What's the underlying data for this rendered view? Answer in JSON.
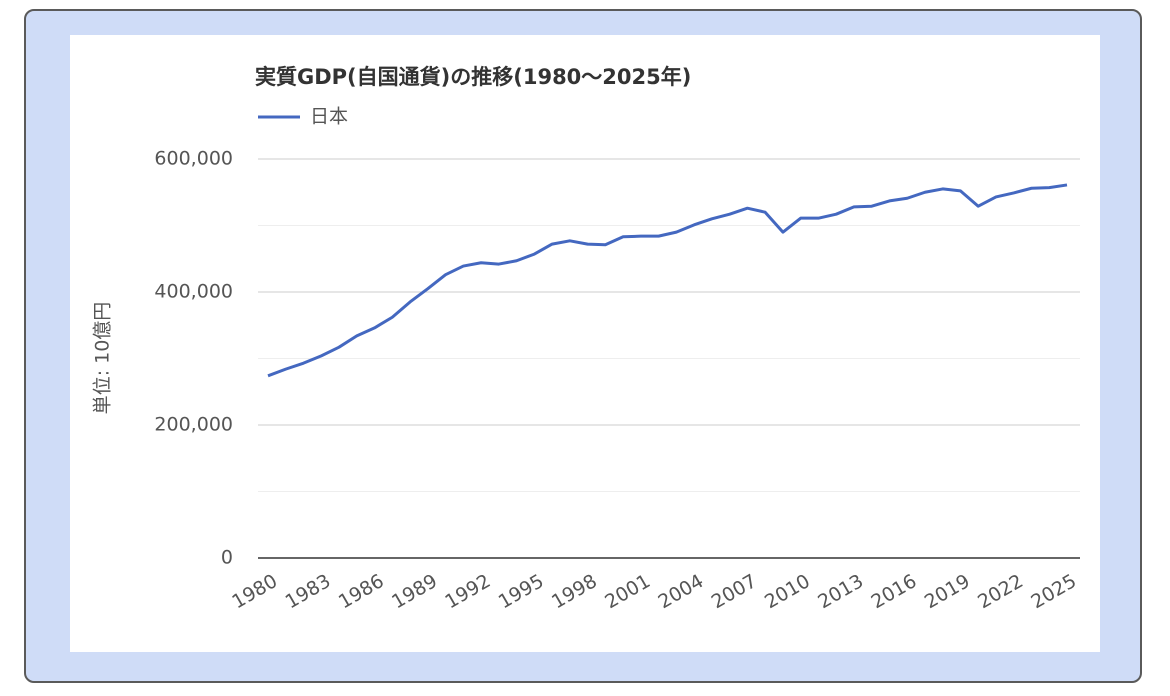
{
  "chart_data": {
    "type": "line",
    "title": "実質GDP(自国通貨)の推移(1980〜2025年)",
    "y_label": "単位: 10億円",
    "x": [
      1980,
      1981,
      1982,
      1983,
      1984,
      1985,
      1986,
      1987,
      1988,
      1989,
      1990,
      1991,
      1992,
      1993,
      1994,
      1995,
      1996,
      1997,
      1998,
      1999,
      2000,
      2001,
      2002,
      2003,
      2004,
      2005,
      2006,
      2007,
      2008,
      2009,
      2010,
      2011,
      2012,
      2013,
      2014,
      2015,
      2016,
      2017,
      2018,
      2019,
      2020,
      2021,
      2022,
      2023,
      2024,
      2025
    ],
    "series": [
      {
        "name": "日本",
        "color": "#4468c0",
        "values": [
          274000,
          284000,
          293000,
          304000,
          317000,
          334000,
          346000,
          362000,
          385000,
          405000,
          426000,
          439000,
          444000,
          442000,
          447000,
          457000,
          472000,
          477000,
          472000,
          471000,
          483000,
          484000,
          484000,
          490000,
          501000,
          510000,
          517000,
          526000,
          520000,
          490000,
          511000,
          511000,
          517000,
          528000,
          529000,
          537000,
          541000,
          550000,
          555000,
          552000,
          529000,
          543000,
          549000,
          556000,
          557000,
          561000
        ]
      }
    ],
    "xlim": [
      1980,
      2025
    ],
    "xticks": [
      1980,
      1983,
      1986,
      1989,
      1992,
      1995,
      1998,
      2001,
      2004,
      2007,
      2010,
      2013,
      2016,
      2019,
      2022,
      2025
    ],
    "ylim": [
      0,
      600000
    ],
    "yticks": [
      0,
      {
        "value": 200000,
        "label": "200,000"
      },
      {
        "value": 400000,
        "label": "400,000"
      },
      {
        "value": 600000,
        "label": "600,000"
      }
    ],
    "minor_yticks": [
      100000,
      300000,
      500000
    ],
    "grid": true
  }
}
